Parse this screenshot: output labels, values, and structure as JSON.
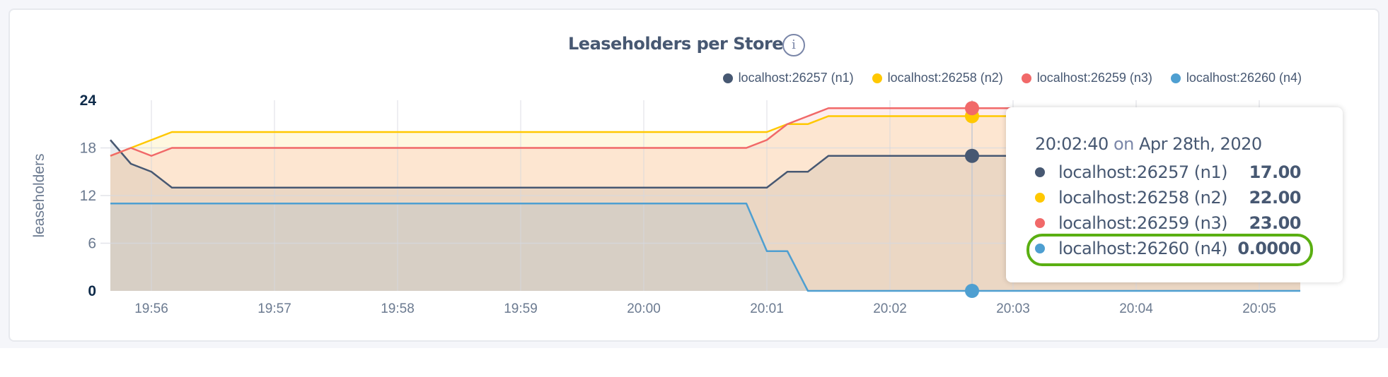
{
  "title": "Leaseholders per Store",
  "info_icon": "info-circle-icon",
  "legend": [
    {
      "label": "localhost:26257 (n1)",
      "color": "#475872"
    },
    {
      "label": "localhost:26258 (n2)",
      "color": "#ffc800"
    },
    {
      "label": "localhost:26259 (n3)",
      "color": "#f16969"
    },
    {
      "label": "localhost:26260 (n4)",
      "color": "#4e9fd1"
    }
  ],
  "tooltip": {
    "time": "20:02:40",
    "on": "on",
    "date": "Apr 28th, 2020",
    "rows": [
      {
        "label": "localhost:26257 (n1)",
        "value": "17.00",
        "color": "#475872"
      },
      {
        "label": "localhost:26258 (n2)",
        "value": "22.00",
        "color": "#ffc800"
      },
      {
        "label": "localhost:26259 (n3)",
        "value": "23.00",
        "color": "#f16969"
      },
      {
        "label": "localhost:26260 (n4)",
        "value": "0.0000",
        "color": "#4e9fd1"
      }
    ],
    "highlighted_row": 3,
    "highlight_color": "#5aaf12"
  },
  "chart_data": {
    "type": "area",
    "title": "Leaseholders per Store",
    "ylabel": "leaseholders",
    "xlabel": "",
    "ylim": [
      0,
      24
    ],
    "yticks": [
      "0",
      "6",
      "12",
      "18",
      "24"
    ],
    "xlim": [
      "19:55:40",
      "20:05:20"
    ],
    "xticks": [
      "19:56",
      "19:57",
      "19:58",
      "19:59",
      "20:00",
      "20:01",
      "20:02",
      "20:03",
      "20:04",
      "20:05"
    ],
    "grid": true,
    "legend_position": "top-right",
    "hover_time": "20:02:40",
    "series": [
      {
        "name": "localhost:26257 (n1)",
        "color": "#475872",
        "points": [
          [
            "19:55:40",
            19
          ],
          [
            "19:55:50",
            16
          ],
          [
            "19:56:00",
            15
          ],
          [
            "19:56:10",
            13
          ],
          [
            "20:01:00",
            13
          ],
          [
            "20:01:10",
            15
          ],
          [
            "20:01:20",
            15
          ],
          [
            "20:01:30",
            17
          ],
          [
            "20:05:20",
            17
          ]
        ]
      },
      {
        "name": "localhost:26258 (n2)",
        "color": "#ffc800",
        "points": [
          [
            "19:55:40",
            17
          ],
          [
            "19:55:50",
            18
          ],
          [
            "19:56:00",
            19
          ],
          [
            "19:56:10",
            20
          ],
          [
            "20:01:00",
            20
          ],
          [
            "20:01:10",
            21
          ],
          [
            "20:01:20",
            21
          ],
          [
            "20:01:30",
            22
          ],
          [
            "20:05:20",
            22
          ]
        ]
      },
      {
        "name": "localhost:26259 (n3)",
        "color": "#f16969",
        "points": [
          [
            "19:55:40",
            17
          ],
          [
            "19:55:50",
            18
          ],
          [
            "19:56:00",
            17
          ],
          [
            "19:56:10",
            18
          ],
          [
            "20:00:50",
            18
          ],
          [
            "20:01:00",
            19
          ],
          [
            "20:01:10",
            21
          ],
          [
            "20:01:20",
            22
          ],
          [
            "20:01:30",
            23
          ],
          [
            "20:05:20",
            23
          ]
        ]
      },
      {
        "name": "localhost:26260 (n4)",
        "color": "#4e9fd1",
        "points": [
          [
            "19:55:40",
            11
          ],
          [
            "20:00:50",
            11
          ],
          [
            "20:01:00",
            5
          ],
          [
            "20:01:10",
            5
          ],
          [
            "20:01:20",
            0
          ],
          [
            "20:05:20",
            0
          ]
        ]
      }
    ]
  }
}
